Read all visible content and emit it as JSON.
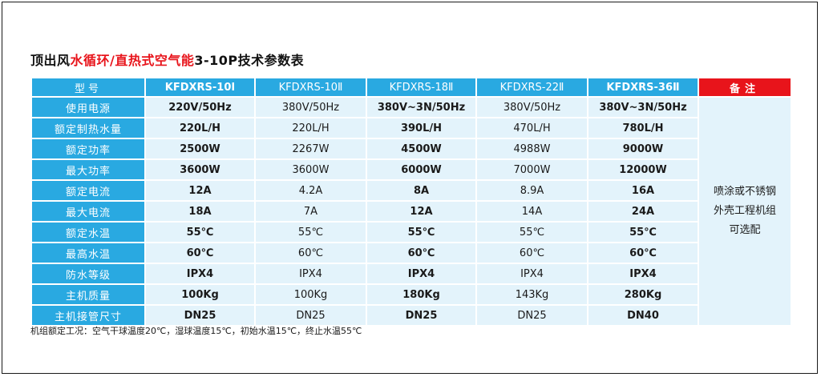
{
  "title": {
    "part1": "顶出风",
    "part2": "水循环/直热式空气能",
    "part3": "3-10P技术参数表"
  },
  "header": {
    "model_label": "型号",
    "models": [
      "KFDXRS-10I",
      "KFDXRS-10Ⅱ",
      "KFDXRS-18Ⅱ",
      "KFDXRS-22Ⅱ",
      "KFDXRS-36Ⅱ"
    ],
    "remark_label": "备注"
  },
  "rows": [
    {
      "label": "使用电源",
      "values": [
        "220V/50Hz",
        "380V/50Hz",
        "380V~3N/50Hz",
        "380V/50Hz",
        "380V~3N/50Hz"
      ]
    },
    {
      "label": "额定制热水量",
      "values": [
        "220L/H",
        "220L/H",
        "390L/H",
        "470L/H",
        "780L/H"
      ]
    },
    {
      "label": "额定功率",
      "values": [
        "2500W",
        "2267W",
        "4500W",
        "4988W",
        "9000W"
      ]
    },
    {
      "label": "最大功率",
      "values": [
        "3600W",
        "3600W",
        "6000W",
        "7000W",
        "12000W"
      ]
    },
    {
      "label": "额定电流",
      "values": [
        "12A",
        "4.2A",
        "8A",
        "8.9A",
        "16A"
      ]
    },
    {
      "label": "最大电流",
      "values": [
        "18A",
        "7A",
        "12A",
        "14A",
        "24A"
      ]
    },
    {
      "label": "额定水温",
      "values": [
        "55℃",
        "55℃",
        "55℃",
        "55℃",
        "55℃"
      ]
    },
    {
      "label": "最高水温",
      "values": [
        "60℃",
        "60℃",
        "60℃",
        "60℃",
        "60℃"
      ]
    },
    {
      "label": "防水等级",
      "values": [
        "IPX4",
        "IPX4",
        "IPX4",
        "IPX4",
        "IPX4"
      ]
    },
    {
      "label": "主机质量",
      "values": [
        "100Kg",
        "100Kg",
        "180Kg",
        "143Kg",
        "280Kg"
      ]
    },
    {
      "label": "主机接管尺寸",
      "values": [
        "DN25",
        "DN25",
        "DN25",
        "DN25",
        "DN40"
      ]
    }
  ],
  "remark": {
    "line1": "喷涂或不锈钢",
    "line2": "外壳工程机组",
    "line3": "可选配"
  },
  "footnote": "机组额定工况：空气干球温度20℃，湿球温度15℃，初始水温15℃，终止水温55℃"
}
